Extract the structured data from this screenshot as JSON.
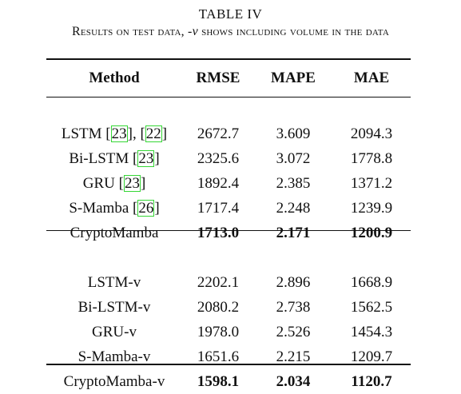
{
  "caption": {
    "title": "TABLE IV",
    "subtitle_pre": "Results on test data, -",
    "subtitle_var": "v",
    "subtitle_post": " shows including volume in the data"
  },
  "table": {
    "headers": [
      "Method",
      "RMSE",
      "MAPE",
      "MAE"
    ],
    "group1": [
      {
        "method_pre": "LSTM [",
        "cite1": "23",
        "method_mid": "], [",
        "cite2": "22",
        "method_post": "]",
        "rmse": "2672.7",
        "mape": "3.609",
        "mae": "2094.3"
      },
      {
        "method_pre": "Bi-LSTM [",
        "cite1": "23",
        "method_post": "]",
        "rmse": "2325.6",
        "mape": "3.072",
        "mae": "1778.8"
      },
      {
        "method_pre": "GRU [",
        "cite1": "23",
        "method_post": "]",
        "rmse": "1892.4",
        "mape": "2.385",
        "mae": "1371.2"
      },
      {
        "method_pre": "S-Mamba [",
        "cite1": "26",
        "method_post": "]",
        "rmse": "1717.4",
        "mape": "2.248",
        "mae": "1239.9"
      },
      {
        "method": "CryptoMamba",
        "rmse": "1713.0",
        "mape": "2.171",
        "mae": "1200.9"
      }
    ],
    "group2": [
      {
        "method": "LSTM-v",
        "rmse": "2202.1",
        "mape": "2.896",
        "mae": "1668.9"
      },
      {
        "method": "Bi-LSTM-v",
        "rmse": "2080.2",
        "mape": "2.738",
        "mae": "1562.5"
      },
      {
        "method": "GRU-v",
        "rmse": "1978.0",
        "mape": "2.526",
        "mae": "1454.3"
      },
      {
        "method": "S-Mamba-v",
        "rmse": "1651.6",
        "mape": "2.215",
        "mae": "1209.7"
      },
      {
        "method": "CryptoMamba-v",
        "rmse": "1598.1",
        "mape": "2.034",
        "mae": "1120.7"
      }
    ]
  }
}
